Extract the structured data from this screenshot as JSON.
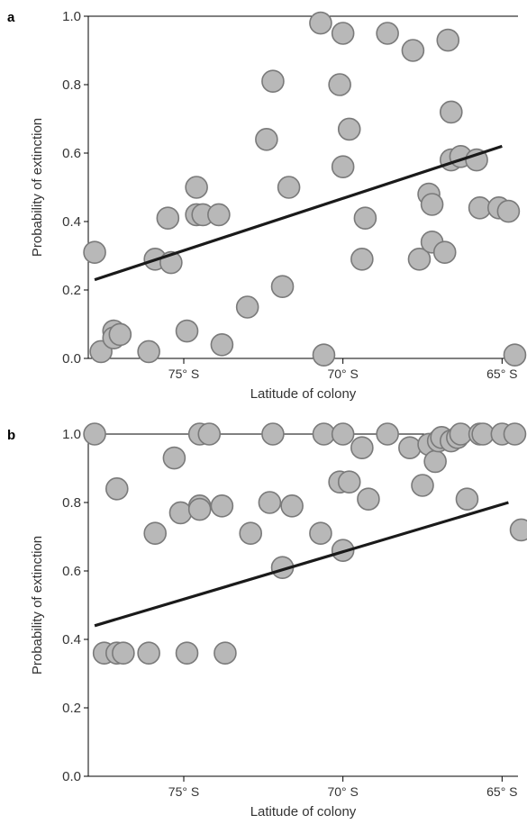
{
  "chart_data": [
    {
      "panel": "a",
      "type": "scatter",
      "xlabel": "Latitude of colony",
      "ylabel": "Probability of extinction",
      "x_axis_note": "x values are degrees South latitude; axis runs from ~78 (left) to ~64.5 (right)",
      "xlim": [
        78.0,
        64.5
      ],
      "ylim": [
        0,
        1.0
      ],
      "x_ticks": [
        75,
        70,
        65
      ],
      "x_tick_labels": [
        "75° S",
        "70° S",
        "65° S"
      ],
      "y_ticks": [
        0.0,
        0.2,
        0.4,
        0.6,
        0.8,
        1.0
      ],
      "y_tick_labels": [
        "0.0",
        "0.2",
        "0.4",
        "0.6",
        "0.8",
        "1.0"
      ],
      "trend_line": {
        "x": [
          77.8,
          65.0
        ],
        "y": [
          0.23,
          0.62
        ]
      },
      "points": [
        {
          "x": 77.8,
          "y": 0.31
        },
        {
          "x": 77.6,
          "y": 0.02
        },
        {
          "x": 77.2,
          "y": 0.08
        },
        {
          "x": 77.2,
          "y": 0.06
        },
        {
          "x": 77.0,
          "y": 0.07
        },
        {
          "x": 76.1,
          "y": 0.02
        },
        {
          "x": 75.9,
          "y": 0.29
        },
        {
          "x": 75.5,
          "y": 0.41
        },
        {
          "x": 75.4,
          "y": 0.28
        },
        {
          "x": 74.9,
          "y": 0.08
        },
        {
          "x": 74.6,
          "y": 0.5
        },
        {
          "x": 74.6,
          "y": 0.42
        },
        {
          "x": 74.4,
          "y": 0.42
        },
        {
          "x": 73.9,
          "y": 0.42
        },
        {
          "x": 73.8,
          "y": 0.04
        },
        {
          "x": 73.0,
          "y": 0.15
        },
        {
          "x": 72.4,
          "y": 0.64
        },
        {
          "x": 72.2,
          "y": 0.81
        },
        {
          "x": 71.9,
          "y": 0.21
        },
        {
          "x": 71.7,
          "y": 0.5
        },
        {
          "x": 70.7,
          "y": 0.98
        },
        {
          "x": 70.6,
          "y": 0.01
        },
        {
          "x": 70.1,
          "y": 0.8
        },
        {
          "x": 70.0,
          "y": 0.95
        },
        {
          "x": 70.0,
          "y": 0.56
        },
        {
          "x": 69.8,
          "y": 0.67
        },
        {
          "x": 69.4,
          "y": 0.29
        },
        {
          "x": 69.3,
          "y": 0.41
        },
        {
          "x": 68.6,
          "y": 0.95
        },
        {
          "x": 67.8,
          "y": 0.9
        },
        {
          "x": 67.6,
          "y": 0.29
        },
        {
          "x": 67.3,
          "y": 0.48
        },
        {
          "x": 67.2,
          "y": 0.45
        },
        {
          "x": 67.2,
          "y": 0.34
        },
        {
          "x": 66.8,
          "y": 0.31
        },
        {
          "x": 66.7,
          "y": 0.93
        },
        {
          "x": 66.6,
          "y": 0.72
        },
        {
          "x": 66.6,
          "y": 0.58
        },
        {
          "x": 66.3,
          "y": 0.59
        },
        {
          "x": 65.8,
          "y": 0.58
        },
        {
          "x": 65.7,
          "y": 0.44
        },
        {
          "x": 65.1,
          "y": 0.44
        },
        {
          "x": 64.8,
          "y": 0.43
        },
        {
          "x": 64.6,
          "y": 0.01
        }
      ]
    },
    {
      "panel": "b",
      "type": "scatter",
      "xlabel": "Latitude of colony",
      "ylabel": "Probability of extinction",
      "x_axis_note": "x values are degrees South latitude; axis runs from ~78 (left) to ~64.5 (right)",
      "xlim": [
        78.0,
        64.5
      ],
      "ylim": [
        0,
        1.0
      ],
      "x_ticks": [
        75,
        70,
        65
      ],
      "x_tick_labels": [
        "75° S",
        "70° S",
        "65° S"
      ],
      "y_ticks": [
        0.0,
        0.2,
        0.4,
        0.6,
        0.8,
        1.0
      ],
      "y_tick_labels": [
        "0.0",
        "0.2",
        "0.4",
        "0.6",
        "0.8",
        "1.0"
      ],
      "trend_line": {
        "x": [
          77.8,
          64.8
        ],
        "y": [
          0.44,
          0.8
        ]
      },
      "points": [
        {
          "x": 77.8,
          "y": 1.0
        },
        {
          "x": 77.5,
          "y": 0.36
        },
        {
          "x": 77.1,
          "y": 0.84
        },
        {
          "x": 77.1,
          "y": 0.36
        },
        {
          "x": 76.9,
          "y": 0.36
        },
        {
          "x": 76.1,
          "y": 0.36
        },
        {
          "x": 75.9,
          "y": 0.71
        },
        {
          "x": 75.3,
          "y": 0.93
        },
        {
          "x": 75.1,
          "y": 0.77
        },
        {
          "x": 74.9,
          "y": 0.36
        },
        {
          "x": 74.5,
          "y": 0.79
        },
        {
          "x": 74.5,
          "y": 0.78
        },
        {
          "x": 74.5,
          "y": 1.0
        },
        {
          "x": 74.2,
          "y": 1.0
        },
        {
          "x": 73.8,
          "y": 0.79
        },
        {
          "x": 73.7,
          "y": 0.36
        },
        {
          "x": 72.9,
          "y": 0.71
        },
        {
          "x": 72.3,
          "y": 0.8
        },
        {
          "x": 72.2,
          "y": 1.0
        },
        {
          "x": 71.9,
          "y": 0.61
        },
        {
          "x": 71.6,
          "y": 0.79
        },
        {
          "x": 70.7,
          "y": 0.71
        },
        {
          "x": 70.6,
          "y": 1.0
        },
        {
          "x": 70.1,
          "y": 0.86
        },
        {
          "x": 70.0,
          "y": 0.66
        },
        {
          "x": 70.0,
          "y": 1.0
        },
        {
          "x": 69.8,
          "y": 0.86
        },
        {
          "x": 69.4,
          "y": 0.96
        },
        {
          "x": 69.2,
          "y": 0.81
        },
        {
          "x": 68.6,
          "y": 1.0
        },
        {
          "x": 67.9,
          "y": 0.96
        },
        {
          "x": 67.5,
          "y": 0.85
        },
        {
          "x": 67.3,
          "y": 0.97
        },
        {
          "x": 67.1,
          "y": 0.92
        },
        {
          "x": 67.0,
          "y": 0.98
        },
        {
          "x": 66.9,
          "y": 0.99
        },
        {
          "x": 66.6,
          "y": 0.98
        },
        {
          "x": 66.4,
          "y": 0.99
        },
        {
          "x": 66.3,
          "y": 1.0
        },
        {
          "x": 66.1,
          "y": 0.81
        },
        {
          "x": 65.7,
          "y": 1.0
        },
        {
          "x": 65.6,
          "y": 1.0
        },
        {
          "x": 65.0,
          "y": 1.0
        },
        {
          "x": 64.6,
          "y": 1.0
        },
        {
          "x": 64.4,
          "y": 0.72
        }
      ]
    }
  ],
  "labels": {
    "panel_a": "a",
    "panel_b": "b"
  }
}
